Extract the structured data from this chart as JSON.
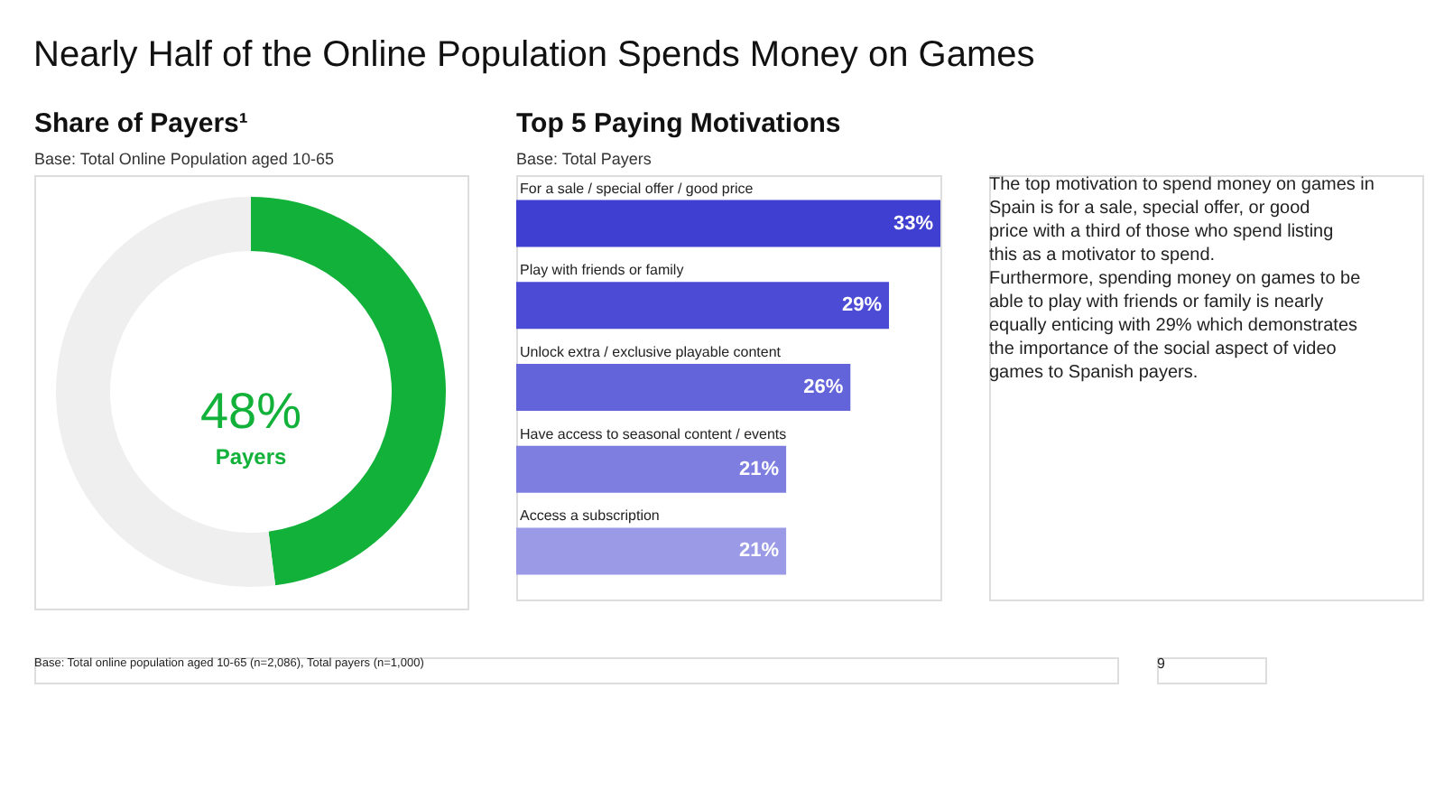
{
  "chart_data": [
    {
      "type": "donut",
      "title": "Share of Payers¹",
      "subtitle": "Base: Total Online Population aged 10-65",
      "categories": [
        "Payers",
        null
      ],
      "values": [
        48,
        52
      ],
      "colors": [
        "#12b23a",
        "#efefef"
      ],
      "value_labels": [
        "48%",
        null
      ]
    },
    {
      "type": "bar",
      "orientation": "horizontal",
      "title": "Top 5 Paying Motivations",
      "subtitle": "Base: Total Payers",
      "categories": [
        "For a sale / special offer / good price",
        "Play with friends or family",
        "Unlock extra / exclusive playable content",
        "Have access to seasonal content / events",
        "Access a subscription"
      ],
      "values": [
        33,
        29,
        26,
        21,
        21
      ],
      "colors": [
        "#3f3fd1",
        "#4b4bd6",
        "#6464da",
        "#7e7ee0",
        "#9a9ae6"
      ],
      "data_labels": true,
      "value_labels": [
        "33%",
        "29%",
        "26%",
        "21%",
        "21%"
      ]
    },
    {
      "type": "other",
      "title": "Nearly Half of the Online Population Spends Money on Games",
      "annotations": [
        "The top motivation to spend money on games in Spain is for a sale, special offer, or good price with a third of those who spend listing this as a motivator to spend.",
        "Furthermore, spending money on games to be able to play with friends or family is nearly equally enticing with 29% which demonstrates the importance of the social aspect of video games to Spanish payers.",
        "Base: Total online population aged 10-65 (n=2,086), Total payers (n=1,000)",
        "9"
      ]
    }
  ]
}
